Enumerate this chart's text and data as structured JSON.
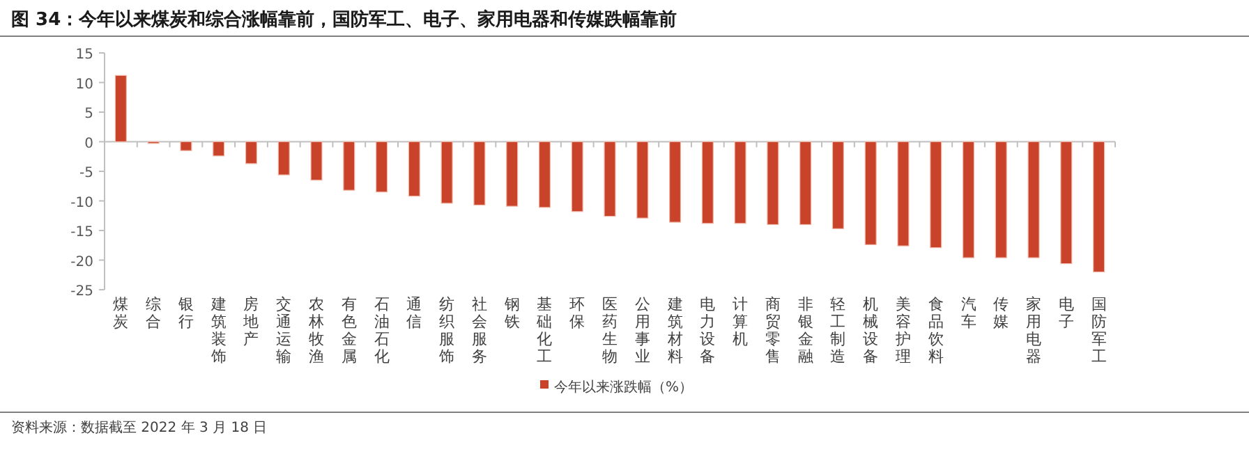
{
  "chart_data": {
    "type": "bar",
    "title": "图 34：今年以来煤炭和综合涨幅靠前，国防军工、电子、家用电器和传媒跌幅靠前",
    "categories": [
      "煤炭",
      "综合",
      "银行",
      "建筑装饰",
      "房地产",
      "交通运输",
      "农林牧渔",
      "有色金属",
      "石油石化",
      "通信",
      "纺织服饰",
      "社会服务",
      "钢铁",
      "基础化工",
      "环保",
      "医药生物",
      "公用事业",
      "建筑材料",
      "电力设备",
      "计算机",
      "商贸零售",
      "非银金融",
      "轻工制造",
      "机械设备",
      "美容护理",
      "食品饮料",
      "汽车",
      "传媒",
      "家用电器",
      "电子",
      "国防军工"
    ],
    "series": [
      {
        "name": "今年以来涨跌幅（%）",
        "color": "#c8432a",
        "values": [
          11.2,
          -0.1,
          -1.5,
          -2.4,
          -3.7,
          -5.6,
          -6.5,
          -8.2,
          -8.5,
          -9.2,
          -10.4,
          -10.7,
          -10.9,
          -11.1,
          -11.8,
          -12.6,
          -12.9,
          -13.6,
          -13.8,
          -13.8,
          -14.0,
          -14.0,
          -14.7,
          -17.4,
          -17.6,
          -17.9,
          -19.6,
          -19.6,
          -19.6,
          -20.6,
          -22.0
        ]
      }
    ],
    "ylim": [
      -25,
      15
    ],
    "yticks": [
      -25,
      -20,
      -15,
      -10,
      -5,
      0,
      5,
      10,
      15
    ],
    "legend": "bottom",
    "annotations": [
      "资料来源：数据截至 2022 年 3 月 18 日"
    ]
  }
}
